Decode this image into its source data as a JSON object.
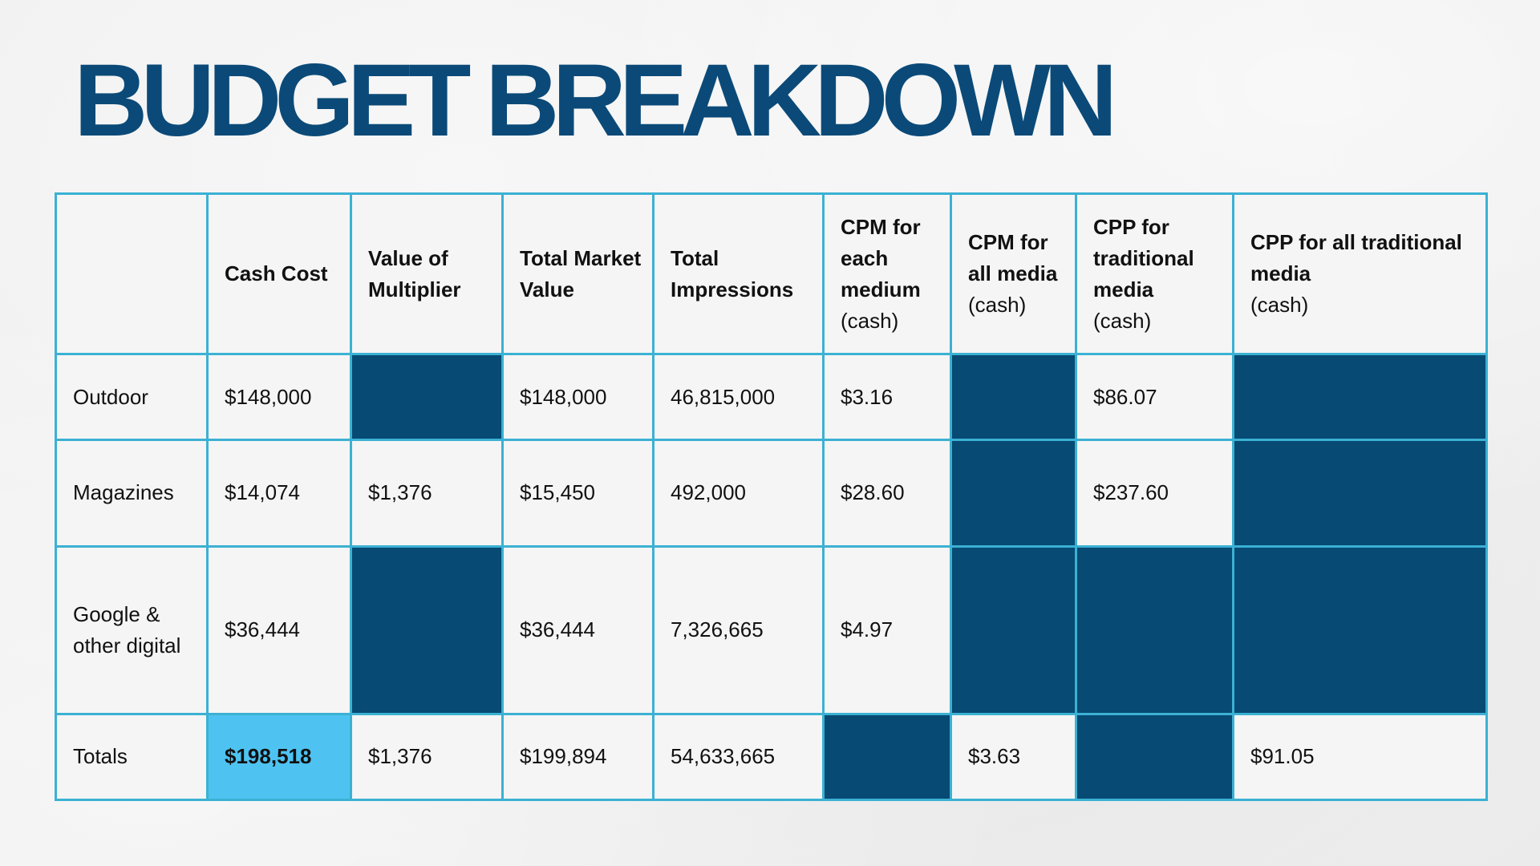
{
  "title": "BUDGET BREAKDOWN",
  "colors": {
    "title": "#0b4a78",
    "grid": "#3bb1d3",
    "filled_cell": "#074a74",
    "highlight_cell": "#4ec3f2"
  },
  "headers": {
    "blank": "",
    "cash_cost": "Cash Cost",
    "multiplier": "Value of Multiplier",
    "market_value": "Total Market Value",
    "impressions": "Total Impressions",
    "cpm_each_bold": "CPM for each medium",
    "cpm_each_paren": "(cash)",
    "cpm_all_bold": "CPM for all media",
    "cpm_all_paren": "(cash)",
    "cpp_trad_bold": "CPP for traditional media",
    "cpp_trad_paren": "(cash)",
    "cpp_all_bold": "CPP for all traditional media",
    "cpp_all_paren": "(cash)"
  },
  "rows": {
    "outdoor": {
      "label": "Outdoor",
      "cash_cost": "$148,000",
      "market_value": "$148,000",
      "impressions": "46,815,000",
      "cpm_each": "$3.16",
      "cpp_trad": "$86.07"
    },
    "magazines": {
      "label": "Magazines",
      "cash_cost": "$14,074",
      "multiplier": "$1,376",
      "market_value": "$15,450",
      "impressions": "492,000",
      "cpm_each": "$28.60",
      "cpp_trad": "$237.60"
    },
    "google": {
      "label": "Google & other digital",
      "cash_cost": "$36,444",
      "market_value": "$36,444",
      "impressions": "7,326,665",
      "cpm_each": "$4.97"
    },
    "totals": {
      "label": "Totals",
      "cash_cost": "$198,518",
      "multiplier": "$1,376",
      "market_value": "$199,894",
      "impressions": "54,633,665",
      "cpm_all": "$3.63",
      "cpp_all": "$91.05"
    }
  }
}
